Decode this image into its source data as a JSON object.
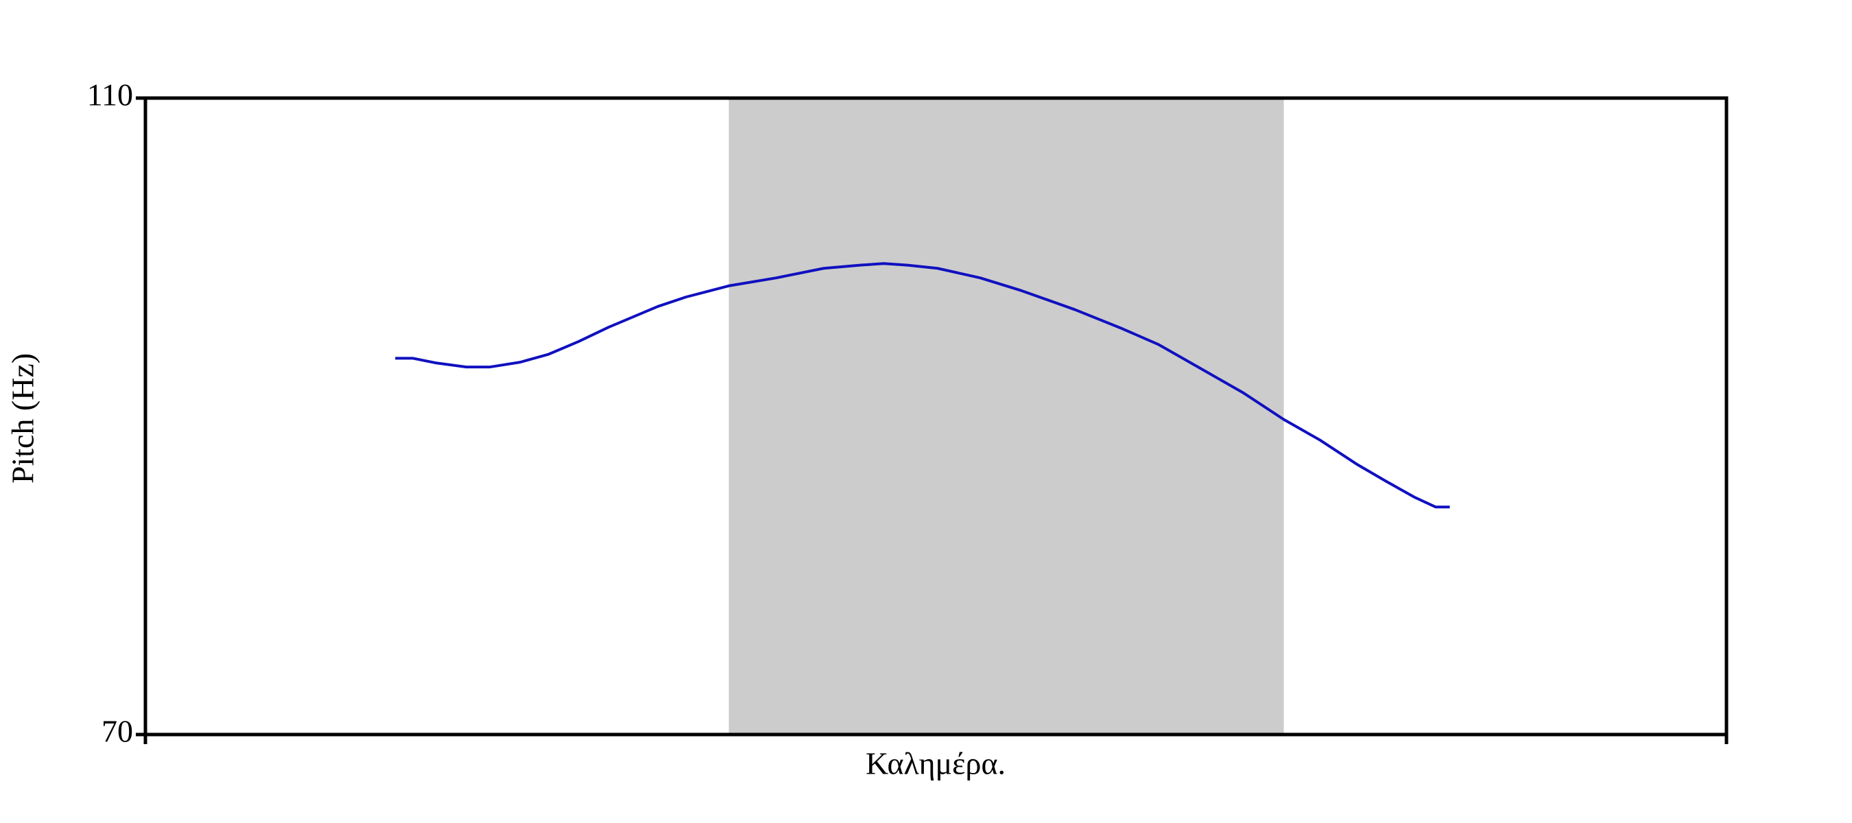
{
  "chart_data": {
    "type": "line",
    "ylabel": "Pitch (Hz)",
    "xlabel": "Καλημέρα.",
    "x": [
      0.158,
      0.169,
      0.184,
      0.203,
      0.218,
      0.237,
      0.255,
      0.274,
      0.293,
      0.324,
      0.342,
      0.369,
      0.399,
      0.429,
      0.452,
      0.467,
      0.482,
      0.501,
      0.528,
      0.554,
      0.588,
      0.618,
      0.641,
      0.671,
      0.694,
      0.72,
      0.743,
      0.766,
      0.785,
      0.803,
      0.816,
      0.825
    ],
    "values": [
      93.65,
      93.65,
      93.35,
      93.1,
      93.1,
      93.4,
      93.9,
      94.7,
      95.6,
      96.9,
      97.5,
      98.2,
      98.7,
      99.3,
      99.5,
      99.6,
      99.5,
      99.3,
      98.7,
      97.9,
      96.7,
      95.5,
      94.5,
      92.8,
      91.5,
      89.8,
      88.5,
      87.0,
      85.9,
      84.9,
      84.3,
      84.3
    ],
    "color": "#1010c0",
    "highlight": {
      "x": [
        0.369,
        0.72
      ],
      "color": "#cccccc"
    },
    "xlim": [
      0,
      1
    ],
    "ylim": [
      70,
      110
    ],
    "yticks": [
      70,
      110
    ]
  }
}
